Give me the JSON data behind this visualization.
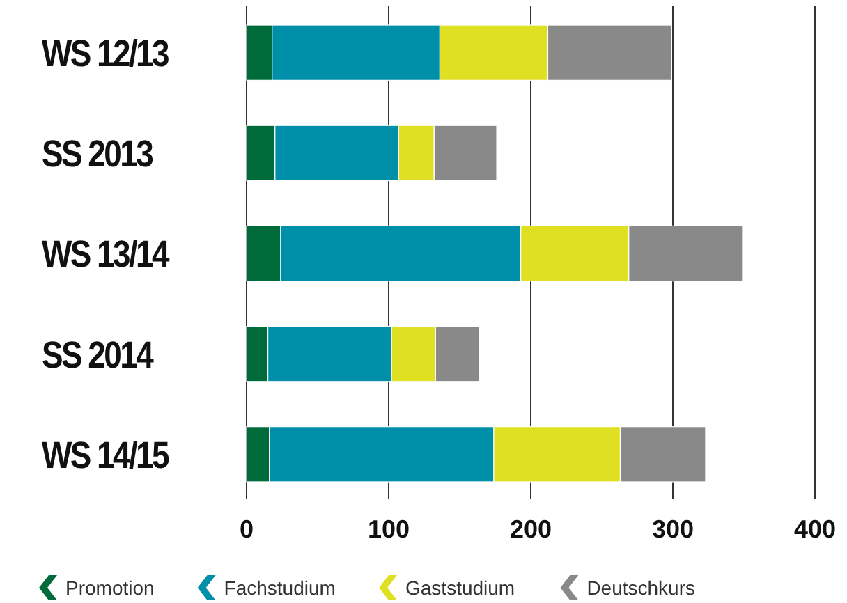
{
  "chart_data": {
    "type": "bar",
    "orientation": "horizontal",
    "stacked": true,
    "categories": [
      "WS 12/13",
      "SS 2013",
      "WS 13/14",
      "SS 2014",
      "WS 14/15"
    ],
    "series": [
      {
        "name": "Promotion",
        "color": "#006b3a",
        "values": [
          18,
          20,
          24,
          15,
          16
        ]
      },
      {
        "name": "Fachstudium",
        "color": "#008fa8",
        "values": [
          118,
          87,
          169,
          87,
          158
        ]
      },
      {
        "name": "Gaststudium",
        "color": "#e0e023",
        "values": [
          76,
          25,
          76,
          31,
          89
        ]
      },
      {
        "name": "Deutschkurs",
        "color": "#898989",
        "values": [
          87,
          44,
          80,
          31,
          60
        ]
      }
    ],
    "xlim": [
      0,
      400
    ],
    "xticks": [
      0,
      100,
      200,
      300,
      400
    ],
    "grid": "x",
    "legend": "bottom"
  }
}
